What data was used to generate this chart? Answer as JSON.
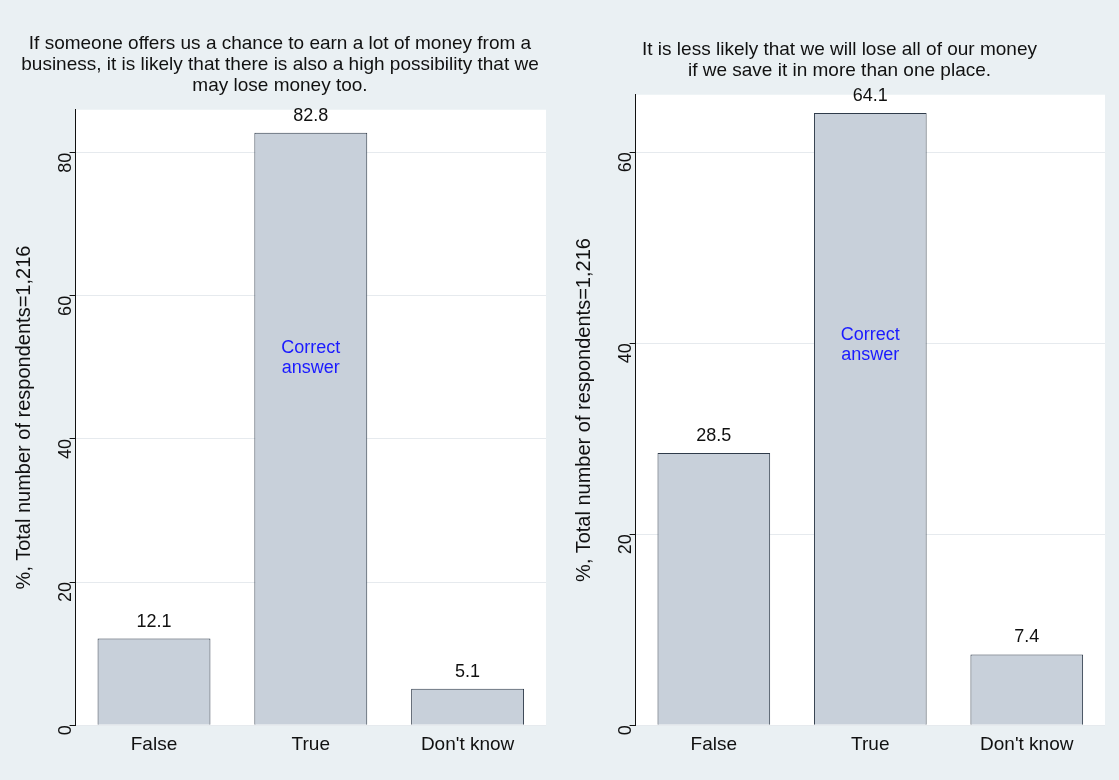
{
  "chart_data": [
    {
      "type": "bar",
      "title": "If someone offers us a chance to earn a lot of money from a business, it is likely that there is also a high possibility that we may lose money too.",
      "ylabel": "%, Total number of respondents=1,216",
      "categories": [
        "False",
        "True",
        "Don't know"
      ],
      "values": [
        12.1,
        82.8,
        5.1
      ],
      "color": "#c8d0da",
      "ylim": [
        0,
        86
      ],
      "yticks": [
        0,
        20,
        40,
        60,
        80
      ],
      "grid": "y",
      "data_labels": true,
      "annotations": [
        "Correct answer"
      ]
    },
    {
      "type": "bar",
      "title": "It is less likely that we will lose all of our money if we save it in more than one place.",
      "ylabel": "%, Total number of respondents=1,216",
      "categories": [
        "False",
        "True",
        "Don't know"
      ],
      "values": [
        28.5,
        64.1,
        7.4
      ],
      "color": "#c8d0da",
      "ylim": [
        0,
        66
      ],
      "yticks": [
        0,
        20,
        40,
        60
      ],
      "grid": "y",
      "data_labels": true,
      "annotations": [
        "Correct answer"
      ]
    }
  ]
}
